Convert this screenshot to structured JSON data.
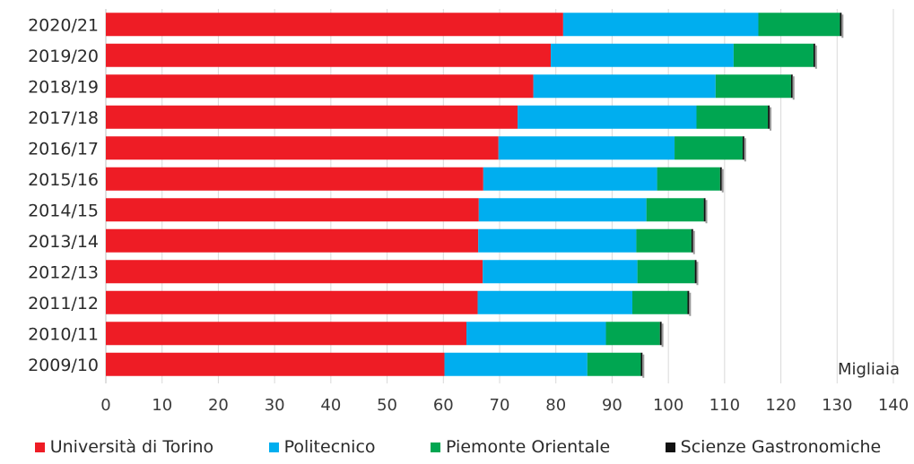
{
  "chart_data": {
    "type": "bar",
    "orientation": "horizontal",
    "stacked": true,
    "unit_label": "Migliaia",
    "categories": [
      "2020/21",
      "2019/20",
      "2018/19",
      "2017/18",
      "2016/17",
      "2015/16",
      "2014/15",
      "2013/14",
      "2012/13",
      "2011/12",
      "2010/11",
      "2009/10"
    ],
    "series": [
      {
        "name": "Università di Torino",
        "color": "#ee1c25",
        "values": [
          81.3,
          79.1,
          76.0,
          73.2,
          69.8,
          67.1,
          66.3,
          66.2,
          67.0,
          66.1,
          64.1,
          60.2
        ]
      },
      {
        "name": "Politecnico",
        "color": "#00aeef",
        "values": [
          34.7,
          32.5,
          32.4,
          31.8,
          31.3,
          30.9,
          29.8,
          28.1,
          27.5,
          27.5,
          24.8,
          25.4
        ]
      },
      {
        "name": "Piemonte Orientale",
        "color": "#00a651",
        "values": [
          14.5,
          14.2,
          13.4,
          12.7,
          12.1,
          11.2,
          10.2,
          9.8,
          10.2,
          9.8,
          9.6,
          9.5
        ]
      },
      {
        "name": "Scienze Gastronomiche",
        "color": "#111111",
        "values": [
          0.3,
          0.3,
          0.3,
          0.3,
          0.3,
          0.3,
          0.3,
          0.3,
          0.3,
          0.3,
          0.3,
          0.3
        ]
      }
    ],
    "xlim": [
      0,
      140
    ],
    "xticks": [
      0,
      10,
      20,
      30,
      40,
      50,
      60,
      70,
      80,
      90,
      100,
      110,
      120,
      130,
      140
    ],
    "grid": true,
    "legend_position": "bottom"
  }
}
